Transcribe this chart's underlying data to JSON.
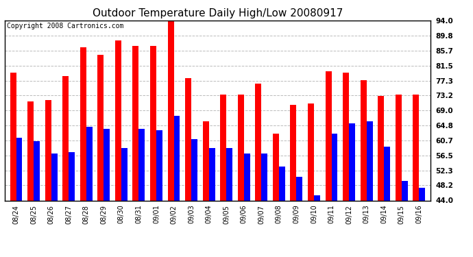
{
  "title": "Outdoor Temperature Daily High/Low 20080917",
  "copyright": "Copyright 2008 Cartronics.com",
  "dates": [
    "08/24",
    "08/25",
    "08/26",
    "08/27",
    "08/28",
    "08/29",
    "08/30",
    "08/31",
    "09/01",
    "09/02",
    "09/03",
    "09/04",
    "09/05",
    "09/06",
    "09/07",
    "09/08",
    "09/09",
    "09/10",
    "09/11",
    "09/12",
    "09/13",
    "09/14",
    "09/15",
    "09/16"
  ],
  "highs": [
    79.5,
    71.5,
    72.0,
    78.5,
    86.5,
    84.5,
    88.5,
    87.0,
    87.0,
    94.0,
    78.0,
    66.0,
    73.5,
    73.5,
    76.5,
    62.5,
    70.5,
    71.0,
    80.0,
    79.5,
    77.5,
    73.0,
    73.5,
    73.5
  ],
  "lows": [
    61.5,
    60.5,
    57.0,
    57.5,
    64.5,
    64.0,
    58.5,
    64.0,
    63.5,
    67.5,
    61.0,
    58.5,
    58.5,
    57.0,
    57.0,
    53.5,
    50.5,
    45.5,
    62.5,
    65.5,
    66.0,
    59.0,
    49.5,
    47.5
  ],
  "high_color": "#FF0000",
  "low_color": "#0000FF",
  "bg_color": "#FFFFFF",
  "grid_color": "#AAAAAA",
  "ylim_min": 44.0,
  "ylim_max": 94.0,
  "yticks": [
    44.0,
    48.2,
    52.3,
    56.5,
    60.7,
    64.8,
    69.0,
    73.2,
    77.3,
    81.5,
    85.7,
    89.8,
    94.0
  ],
  "title_fontsize": 11,
  "copyright_fontsize": 7,
  "bar_width": 0.35,
  "fig_width": 6.9,
  "fig_height": 3.75,
  "dpi": 100
}
